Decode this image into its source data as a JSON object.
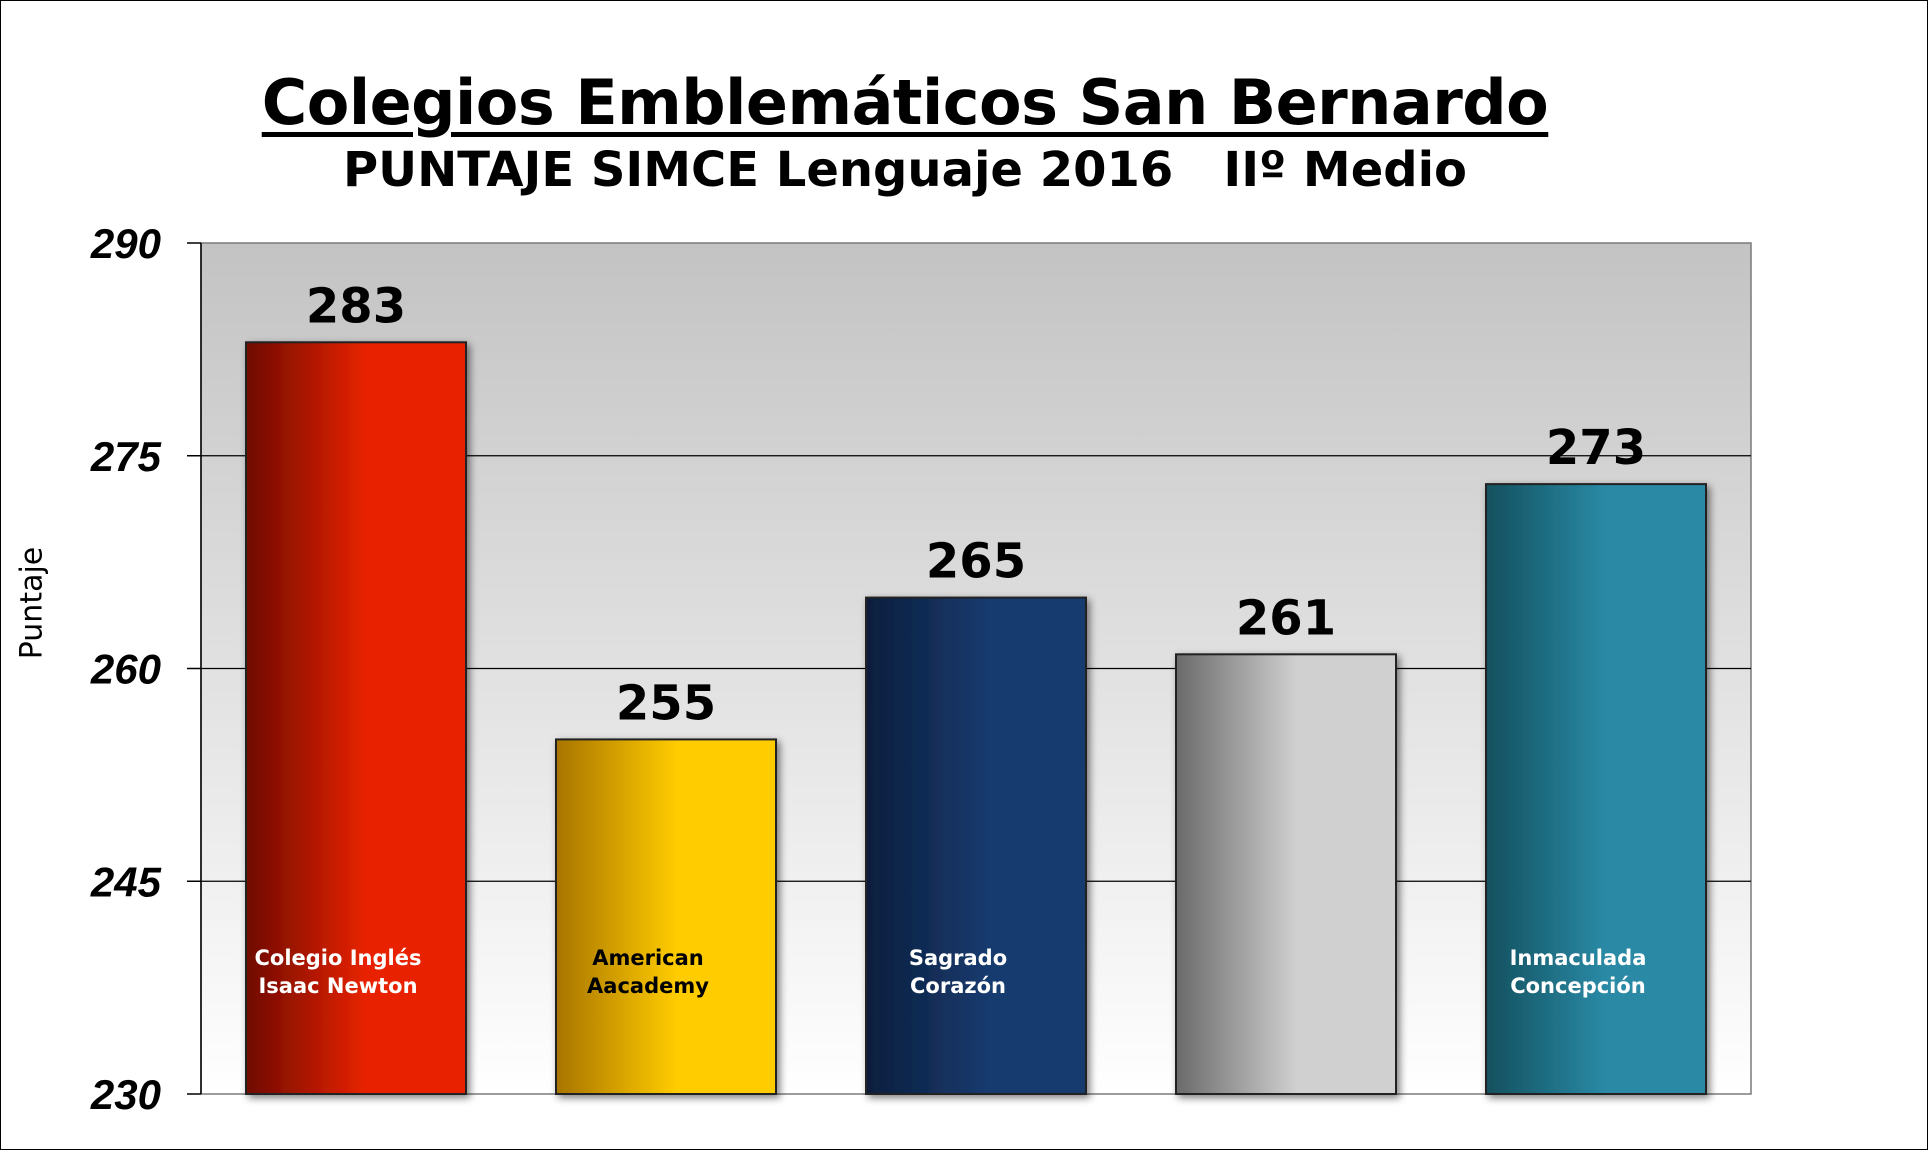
{
  "chart_data": {
    "type": "bar",
    "title": "Colegios Emblemáticos San Bernardo",
    "subtitle": "PUNTAJE SIMCE Lenguaje 2016   IIº Medio",
    "ylabel": "Puntaje",
    "xlabel": "",
    "ylim": [
      230,
      290
    ],
    "yticks": [
      230,
      245,
      260,
      275,
      290
    ],
    "grid": true,
    "categories": [
      [
        "Colegio Inglés",
        "Isaac Newton"
      ],
      [
        "American",
        "Aacademy"
      ],
      [
        "Sagrado",
        "Corazón"
      ],
      [
        "Inmaculada",
        "Concepción"
      ]
    ],
    "bars": [
      {
        "label": [
          "Colegio Inglés",
          "Isaac Newton"
        ],
        "value": 283,
        "color_dark": "#6e0a02",
        "color_light": "#e82300",
        "label_color": "#ffffff"
      },
      {
        "label": [
          "American",
          "Aacademy"
        ],
        "value": 255,
        "color_dark": "#a87400",
        "color_light": "#ffcc00",
        "label_color": "#000000"
      },
      {
        "label": [
          "Sagrado",
          "Corazón"
        ],
        "value": 265,
        "color_dark": "#0a1e3c",
        "color_light": "#183a6e",
        "label_color": "#ffffff"
      },
      {
        "label": [],
        "value": 261,
        "color_dark": "#6a6a6a",
        "color_light": "#d0d0d0",
        "label_color": "#000000"
      },
      {
        "label": [
          "Inmaculada",
          "Concepción"
        ],
        "value": 273,
        "color_dark": "#13505e",
        "color_light": "#2a8aa6",
        "label_color": "#ffffff"
      }
    ]
  }
}
